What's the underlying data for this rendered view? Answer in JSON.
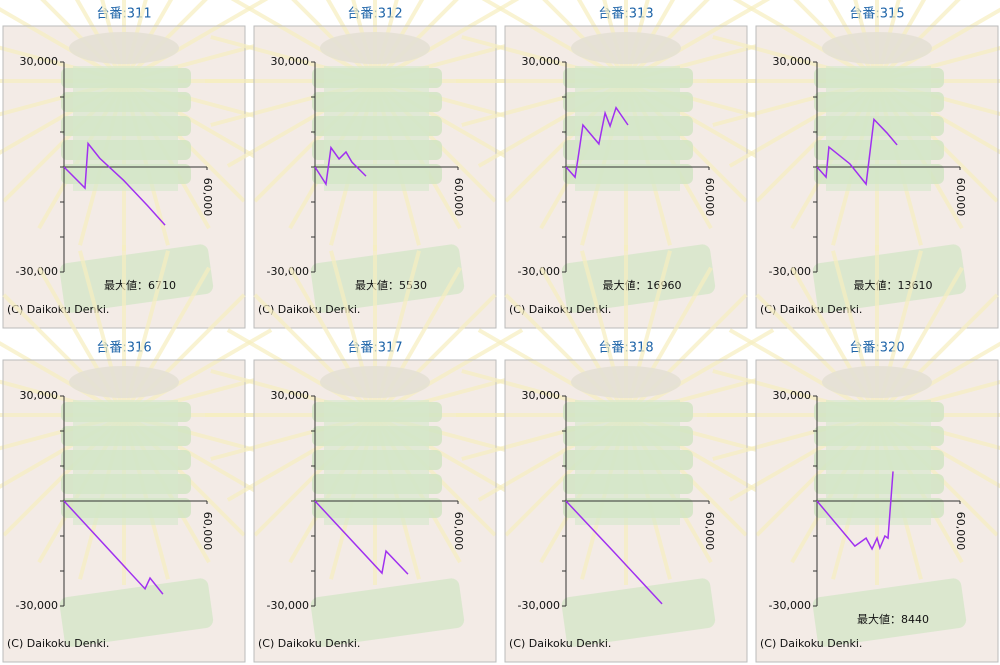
{
  "chart_data": [
    {
      "type": "line",
      "title": "台番:311",
      "x": [
        0,
        8800,
        10100,
        15000,
        25000,
        35000,
        42400
      ],
      "values": [
        0,
        -6000,
        6710,
        2500,
        -3800,
        -11000,
        -16600
      ],
      "color": "#a030f0",
      "xlim": [
        0,
        60000
      ],
      "xticks": [
        {
          "value": 60000,
          "label": "60,000"
        }
      ],
      "ylim": [
        -30000,
        30000
      ],
      "yticks": [
        {
          "value": 30000,
          "label": "30,000"
        },
        {
          "value": -30000,
          "label": "-30,000"
        }
      ],
      "minor_yticks": [
        20000,
        10000,
        0,
        -10000,
        -20000
      ],
      "annotation": "最大値：6710",
      "copyright": "(C) Daikoku Denki."
    },
    {
      "type": "line",
      "title": "台番:312",
      "x": [
        0,
        4600,
        6700,
        10100,
        13000,
        15500,
        21400
      ],
      "values": [
        0,
        -4900,
        5530,
        2300,
        4300,
        1400,
        -2600
      ],
      "color": "#a030f0",
      "xlim": [
        0,
        60000
      ],
      "xticks": [
        {
          "value": 60000,
          "label": "60,000"
        }
      ],
      "ylim": [
        -30000,
        30000
      ],
      "yticks": [
        {
          "value": 30000,
          "label": "30,000"
        },
        {
          "value": -30000,
          "label": "-30,000"
        }
      ],
      "minor_yticks": [
        20000,
        10000,
        0,
        -10000,
        -20000
      ],
      "annotation": "最大値：5530",
      "copyright": "(C) Daikoku Denki."
    },
    {
      "type": "line",
      "title": "台番:313",
      "x": [
        0,
        3800,
        5000,
        7100,
        13800,
        16400,
        18500,
        21000,
        26000
      ],
      "values": [
        0,
        -2900,
        2300,
        12000,
        6600,
        15400,
        11700,
        16960,
        12000
      ],
      "color": "#a030f0",
      "xlim": [
        0,
        60000
      ],
      "xticks": [
        {
          "value": 60000,
          "label": "60,000"
        }
      ],
      "ylim": [
        -30000,
        30000
      ],
      "yticks": [
        {
          "value": 30000,
          "label": "30,000"
        },
        {
          "value": -30000,
          "label": "-30,000"
        }
      ],
      "minor_yticks": [
        20000,
        10000,
        0,
        -10000,
        -20000
      ],
      "annotation": "最大値：16960",
      "copyright": "(C) Daikoku Denki."
    },
    {
      "type": "line",
      "title": "台番:315",
      "x": [
        0,
        3800,
        5000,
        13800,
        20600,
        23900,
        29400,
        33600
      ],
      "values": [
        0,
        -2900,
        5700,
        900,
        -4900,
        13610,
        9700,
        6300
      ],
      "color": "#a030f0",
      "xlim": [
        0,
        60000
      ],
      "xticks": [
        {
          "value": 60000,
          "label": "60,000"
        }
      ],
      "ylim": [
        -30000,
        30000
      ],
      "yticks": [
        {
          "value": 30000,
          "label": "30,000"
        },
        {
          "value": -30000,
          "label": "-30,000"
        }
      ],
      "minor_yticks": [
        20000,
        10000,
        0,
        -10000,
        -20000
      ],
      "annotation": "最大値：13610",
      "copyright": "(C) Daikoku Denki."
    },
    {
      "type": "line",
      "title": "台番:316",
      "x": [
        0,
        34000,
        36100,
        41500
      ],
      "values": [
        0,
        -25100,
        -22000,
        -26600
      ],
      "color": "#a030f0",
      "xlim": [
        0,
        60000
      ],
      "xticks": [
        {
          "value": 60000,
          "label": "60,000"
        }
      ],
      "ylim": [
        -30000,
        30000
      ],
      "yticks": [
        {
          "value": 30000,
          "label": "30,000"
        },
        {
          "value": -30000,
          "label": "-30,000"
        }
      ],
      "minor_yticks": [
        20000,
        10000,
        0,
        -10000,
        -20000
      ],
      "copyright": "(C) Daikoku Denki."
    },
    {
      "type": "line",
      "title": "台番:317",
      "x": [
        0,
        28100,
        29800,
        39000
      ],
      "values": [
        0,
        -20600,
        -14300,
        -20900
      ],
      "color": "#a030f0",
      "xlim": [
        0,
        60000
      ],
      "xticks": [
        {
          "value": 60000,
          "label": "60,000"
        }
      ],
      "ylim": [
        -30000,
        30000
      ],
      "yticks": [
        {
          "value": 30000,
          "label": "30,000"
        },
        {
          "value": -30000,
          "label": "-30,000"
        }
      ],
      "minor_yticks": [
        20000,
        10000,
        0,
        -10000,
        -20000
      ],
      "copyright": "(C) Daikoku Denki."
    },
    {
      "type": "line",
      "title": "台番:318",
      "x": [
        0,
        20000,
        40300
      ],
      "values": [
        0,
        -14500,
        -29400
      ],
      "color": "#a030f0",
      "xlim": [
        0,
        60000
      ],
      "xticks": [
        {
          "value": 60000,
          "label": "60,000"
        }
      ],
      "ylim": [
        -30000,
        30000
      ],
      "yticks": [
        {
          "value": 30000,
          "label": "30,000"
        },
        {
          "value": -30000,
          "label": "-30,000"
        }
      ],
      "minor_yticks": [
        20000,
        10000,
        0,
        -10000,
        -20000
      ],
      "copyright": "(C) Daikoku Denki."
    },
    {
      "type": "line",
      "title": "台番:320",
      "x": [
        0,
        15900,
        20600,
        23100,
        25200,
        26400,
        28500,
        29800,
        31900
      ],
      "values": [
        0,
        -12900,
        -10600,
        -13700,
        -10600,
        -13400,
        -10000,
        -10600,
        8440
      ],
      "color": "#a030f0",
      "xlim": [
        0,
        60000
      ],
      "xticks": [
        {
          "value": 60000,
          "label": "60,000"
        }
      ],
      "ylim": [
        -30000,
        30000
      ],
      "yticks": [
        {
          "value": 30000,
          "label": "30,000"
        },
        {
          "value": -30000,
          "label": "-30,000"
        }
      ],
      "minor_yticks": [
        20000,
        10000,
        0,
        -10000,
        -20000
      ],
      "annotation": "最大値：8440",
      "copyright": "(C) Daikoku Denki."
    }
  ]
}
